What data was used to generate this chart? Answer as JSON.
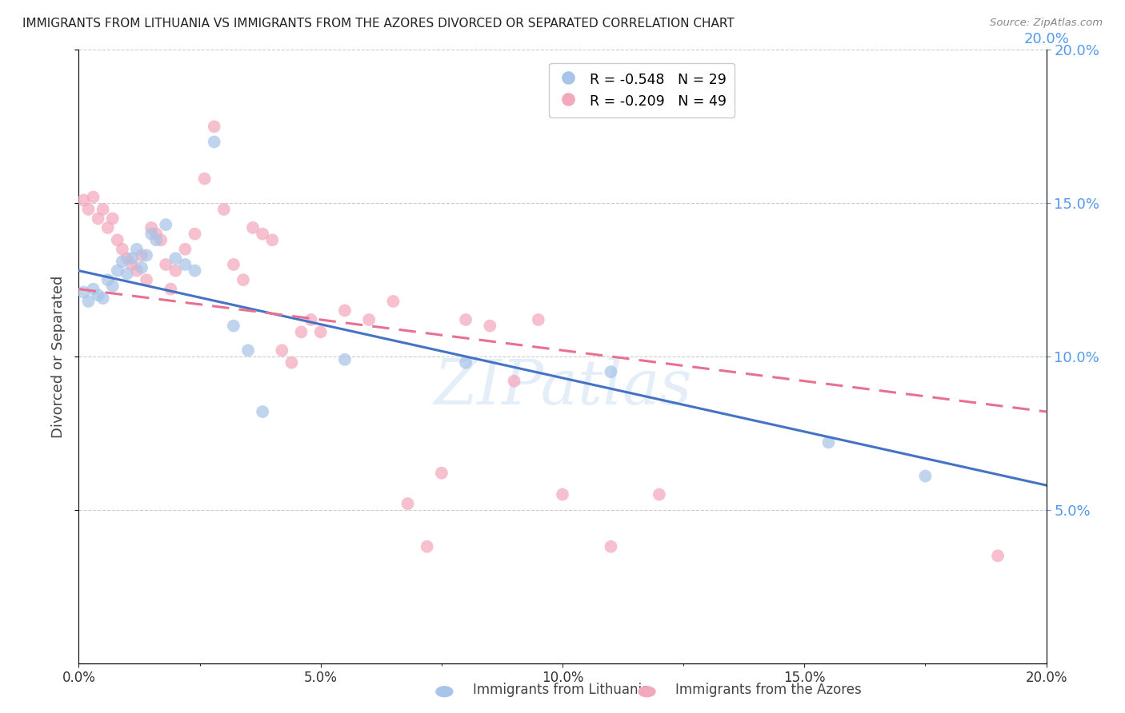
{
  "title": "IMMIGRANTS FROM LITHUANIA VS IMMIGRANTS FROM THE AZORES DIVORCED OR SEPARATED CORRELATION CHART",
  "source": "Source: ZipAtlas.com",
  "ylabel": "Divorced or Separated",
  "xlim": [
    0.0,
    0.2
  ],
  "ylim": [
    0.0,
    0.2
  ],
  "legend_r1": "R = -0.548",
  "legend_n1": "N = 29",
  "legend_r2": "R = -0.209",
  "legend_n2": "N = 49",
  "watermark": "ZIPatlas",
  "lithuania_color": "#a8c4e8",
  "azores_color": "#f4a8bc",
  "trend_lithuania_color": "#4472c4",
  "trend_azores_color": "#e87090",
  "background_color": "#ffffff",
  "grid_color": "#cccccc",
  "right_axis_color": "#5599ee",
  "lithuania_scatter": [
    [
      0.001,
      0.121
    ],
    [
      0.002,
      0.118
    ],
    [
      0.003,
      0.122
    ],
    [
      0.004,
      0.12
    ],
    [
      0.005,
      0.119
    ],
    [
      0.006,
      0.125
    ],
    [
      0.007,
      0.123
    ],
    [
      0.008,
      0.128
    ],
    [
      0.009,
      0.131
    ],
    [
      0.01,
      0.127
    ],
    [
      0.011,
      0.132
    ],
    [
      0.012,
      0.135
    ],
    [
      0.013,
      0.129
    ],
    [
      0.014,
      0.133
    ],
    [
      0.015,
      0.14
    ],
    [
      0.016,
      0.138
    ],
    [
      0.018,
      0.143
    ],
    [
      0.02,
      0.132
    ],
    [
      0.022,
      0.13
    ],
    [
      0.024,
      0.128
    ],
    [
      0.028,
      0.17
    ],
    [
      0.032,
      0.11
    ],
    [
      0.035,
      0.102
    ],
    [
      0.038,
      0.082
    ],
    [
      0.055,
      0.099
    ],
    [
      0.08,
      0.098
    ],
    [
      0.11,
      0.095
    ],
    [
      0.155,
      0.072
    ],
    [
      0.175,
      0.061
    ]
  ],
  "azores_scatter": [
    [
      0.001,
      0.151
    ],
    [
      0.002,
      0.148
    ],
    [
      0.003,
      0.152
    ],
    [
      0.004,
      0.145
    ],
    [
      0.005,
      0.148
    ],
    [
      0.006,
      0.142
    ],
    [
      0.007,
      0.145
    ],
    [
      0.008,
      0.138
    ],
    [
      0.009,
      0.135
    ],
    [
      0.01,
      0.132
    ],
    [
      0.011,
      0.13
    ],
    [
      0.012,
      0.128
    ],
    [
      0.013,
      0.133
    ],
    [
      0.014,
      0.125
    ],
    [
      0.015,
      0.142
    ],
    [
      0.016,
      0.14
    ],
    [
      0.017,
      0.138
    ],
    [
      0.018,
      0.13
    ],
    [
      0.019,
      0.122
    ],
    [
      0.02,
      0.128
    ],
    [
      0.022,
      0.135
    ],
    [
      0.024,
      0.14
    ],
    [
      0.026,
      0.158
    ],
    [
      0.028,
      0.175
    ],
    [
      0.03,
      0.148
    ],
    [
      0.032,
      0.13
    ],
    [
      0.034,
      0.125
    ],
    [
      0.036,
      0.142
    ],
    [
      0.038,
      0.14
    ],
    [
      0.04,
      0.138
    ],
    [
      0.042,
      0.102
    ],
    [
      0.044,
      0.098
    ],
    [
      0.046,
      0.108
    ],
    [
      0.048,
      0.112
    ],
    [
      0.05,
      0.108
    ],
    [
      0.055,
      0.115
    ],
    [
      0.06,
      0.112
    ],
    [
      0.065,
      0.118
    ],
    [
      0.068,
      0.052
    ],
    [
      0.072,
      0.038
    ],
    [
      0.075,
      0.062
    ],
    [
      0.08,
      0.112
    ],
    [
      0.085,
      0.11
    ],
    [
      0.09,
      0.092
    ],
    [
      0.095,
      0.112
    ],
    [
      0.1,
      0.055
    ],
    [
      0.11,
      0.038
    ],
    [
      0.12,
      0.055
    ],
    [
      0.19,
      0.035
    ]
  ],
  "lithuania_trend_x": [
    0.0,
    0.2
  ],
  "lithuania_trend_y": [
    0.128,
    0.058
  ],
  "azores_trend_x": [
    0.0,
    0.2
  ],
  "azores_trend_y": [
    0.122,
    0.082
  ]
}
